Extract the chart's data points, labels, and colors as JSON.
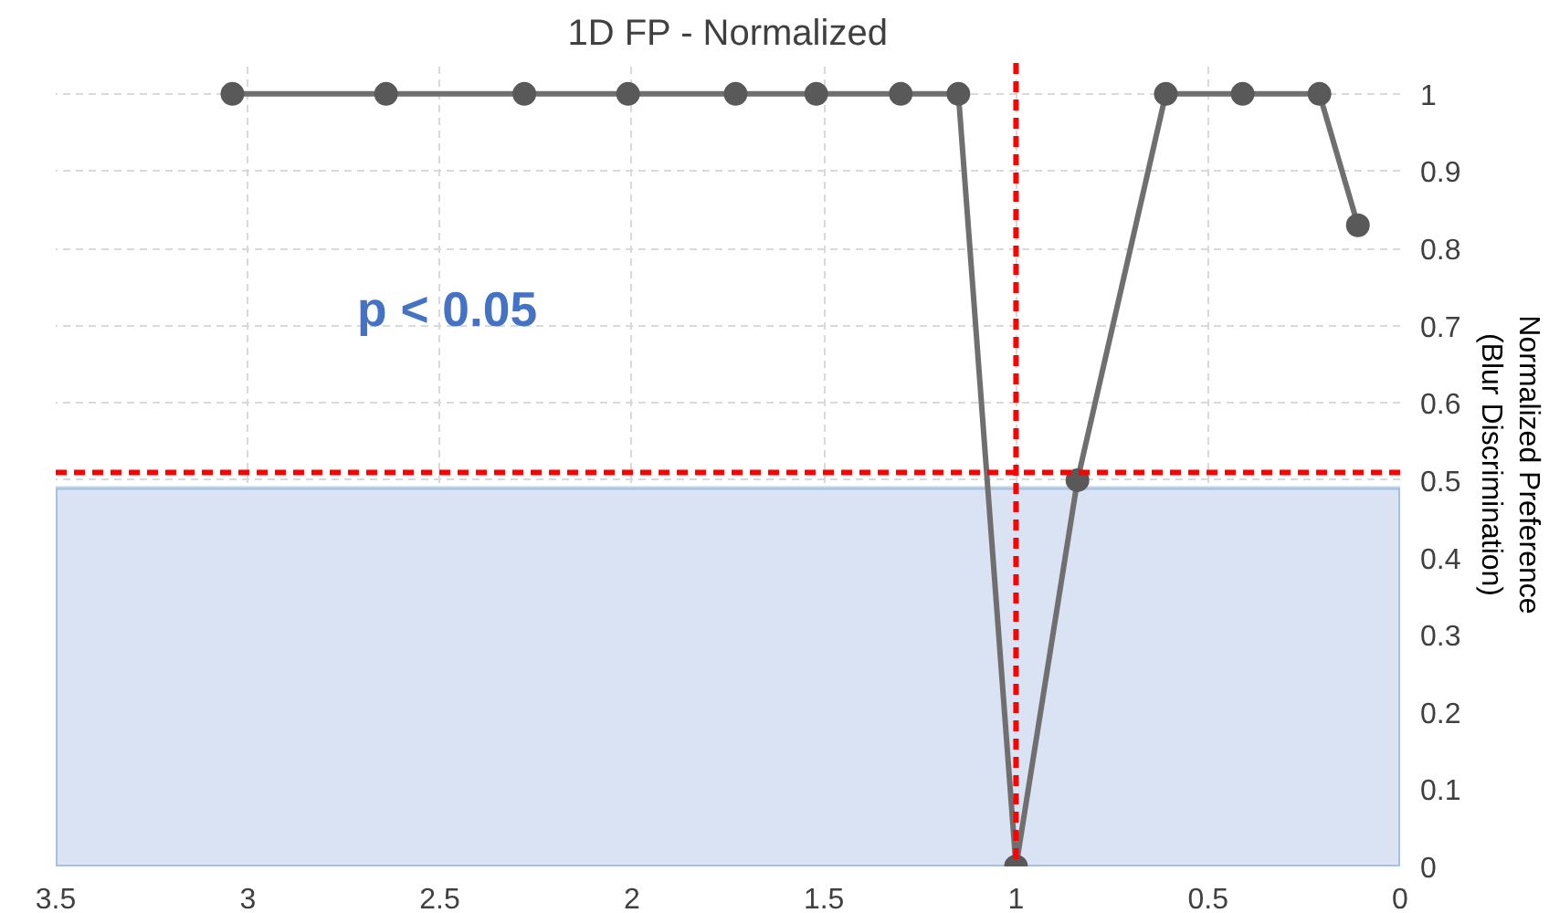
{
  "chart_data": {
    "type": "line",
    "title": "1D FP - Normalized",
    "ylabel": "Normalized Preference\n(Blur Discrimination)",
    "x": [
      3.04,
      2.64,
      2.28,
      2.01,
      1.73,
      1.52,
      1.3,
      1.15,
      1.0,
      0.84,
      0.61,
      0.41,
      0.21,
      0.11
    ],
    "series": [
      {
        "color": "#6f6f6f",
        "values": [
          1,
          1,
          1,
          1,
          1,
          1,
          1,
          1,
          0,
          0.5,
          1,
          1,
          1,
          0.83
        ]
      }
    ],
    "xlim": [
      3.5,
      0
    ],
    "xticks": [
      3.5,
      3,
      2.5,
      2,
      1.5,
      1,
      0.5,
      0
    ],
    "ylim": [
      0,
      1.04
    ],
    "yticks": [
      0,
      0.1,
      0.2,
      0.3,
      0.4,
      0.5,
      0.6,
      0.7,
      0.8,
      0.9,
      1
    ],
    "grid": true,
    "marker": "circle",
    "line_style": "solid",
    "ref_lines": [
      {
        "axis": "x",
        "value": 1,
        "color": "#ff0000",
        "line_style": "dashed"
      },
      {
        "axis": "y",
        "value": 0.51,
        "color": "#ff0000",
        "line_style": "dashed"
      }
    ],
    "bands": [
      {
        "axis": "y",
        "from": 0,
        "to": 0.49,
        "color": "#dae3f3"
      }
    ],
    "annotations": [
      "p < 0.05"
    ]
  }
}
